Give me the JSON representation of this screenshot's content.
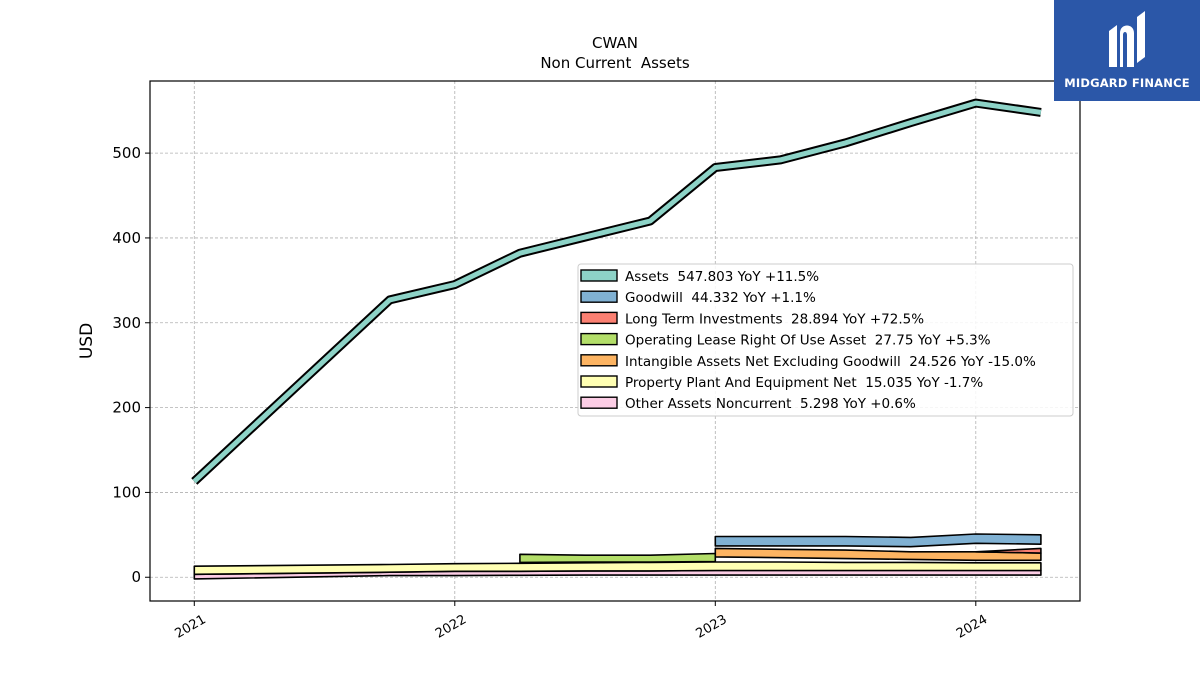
{
  "logo": {
    "text": "MIDGARD FINANCE",
    "bg_color": "#2b57a8"
  },
  "chart_data": {
    "type": "area",
    "title": "CWAN",
    "subtitle": "Non Current  Assets",
    "ylabel": "USD",
    "xlabel": "",
    "ylim": [
      -28,
      585
    ],
    "xlim": [
      2020.83,
      2024.4
    ],
    "yticks": [
      0,
      100,
      200,
      300,
      400,
      500
    ],
    "xticks": [
      2021,
      2022,
      2023,
      2024
    ],
    "xtick_labels": [
      "2021",
      "2022",
      "2023",
      "2024"
    ],
    "grid": true,
    "legend_position": "right-center",
    "series": [
      {
        "name": "Other Assets Noncurrent",
        "legend": "Other Assets Noncurrent  5.298 YoY +0.6%",
        "color": "#fccde5",
        "kind": "band",
        "x": [
          2021.0,
          2021.75,
          2022.0,
          2022.25,
          2022.5,
          2022.75,
          2023.0,
          2023.25,
          2023.5,
          2023.75,
          2024.0,
          2024.25
        ],
        "lower": [
          -2,
          2,
          2,
          2.3,
          2.5,
          2.5,
          2.5,
          2.5,
          2.5,
          2.5,
          2.5,
          2.5
        ],
        "upper": [
          3.5,
          6,
          7,
          7,
          7.5,
          7.5,
          8,
          8,
          8,
          8,
          8,
          8
        ]
      },
      {
        "name": "Property Plant And Equipment Net",
        "legend": "Property Plant And Equipment Net  15.035 YoY -1.7%",
        "color": "#ffffb3",
        "kind": "band",
        "x": [
          2021.0,
          2021.75,
          2022.0,
          2022.25,
          2022.5,
          2022.75,
          2023.0,
          2023.25,
          2023.5,
          2023.75,
          2024.0,
          2024.25
        ],
        "lower": [
          3.5,
          6,
          7,
          7,
          7.5,
          7.5,
          8,
          8,
          8,
          8,
          8,
          8
        ],
        "upper": [
          13,
          15,
          16,
          16.5,
          17,
          17.5,
          18,
          18,
          17.5,
          17.5,
          17,
          17
        ]
      },
      {
        "name": "Operating Lease Right Of Use Asset",
        "legend": "Operating Lease Right Of Use Asset  27.75 YoY +5.3%",
        "color": "#b3de69",
        "kind": "band",
        "x": [
          2022.25,
          2022.5,
          2022.75,
          2023.0
        ],
        "lower": [
          17.5,
          18,
          18,
          18.5
        ],
        "upper": [
          27,
          26,
          26,
          28
        ]
      },
      {
        "name": "Intangible Assets Net Excluding Goodwill",
        "legend": "Intangible Assets Net Excluding Goodwill  24.526 YoY -15.0%",
        "color": "#fdb462",
        "kind": "band",
        "x": [
          2023.0,
          2023.25,
          2023.5,
          2023.75,
          2024.0,
          2024.25
        ],
        "lower": [
          24,
          23,
          22,
          21,
          20,
          20
        ],
        "upper": [
          34,
          33,
          32,
          30,
          30,
          28.5
        ]
      },
      {
        "name": "Long Term Investments",
        "legend": "Long Term Investments  28.894 YoY +72.5%",
        "color": "#fb8072",
        "kind": "band",
        "x": [
          2024.0,
          2024.25
        ],
        "lower": [
          30,
          28.5
        ],
        "upper": [
          30,
          34
        ]
      },
      {
        "name": "Goodwill",
        "legend": "Goodwill  44.332 YoY +1.1%",
        "color": "#80b1d3",
        "kind": "band",
        "x": [
          2023.0,
          2023.25,
          2023.5,
          2023.75,
          2024.0,
          2024.25
        ],
        "lower": [
          37,
          37,
          37,
          36,
          40,
          39
        ],
        "upper": [
          48,
          48,
          48,
          47,
          51,
          50
        ]
      },
      {
        "name": "Assets",
        "legend": "Assets  547.803 YoY +11.5%",
        "color": "#8dd3c7",
        "kind": "line",
        "x": [
          2021.0,
          2021.75,
          2022.0,
          2022.25,
          2022.5,
          2022.75,
          2023.0,
          2023.25,
          2023.5,
          2023.75,
          2024.0,
          2024.25
        ],
        "values": [
          113,
          327,
          345,
          382,
          401,
          420,
          483,
          492,
          512,
          536,
          559,
          548
        ]
      }
    ],
    "legend_order": [
      "Assets",
      "Goodwill",
      "Long Term Investments",
      "Operating Lease Right Of Use Asset",
      "Intangible Assets Net Excluding Goodwill",
      "Property Plant And Equipment Net",
      "Other Assets Noncurrent"
    ]
  }
}
